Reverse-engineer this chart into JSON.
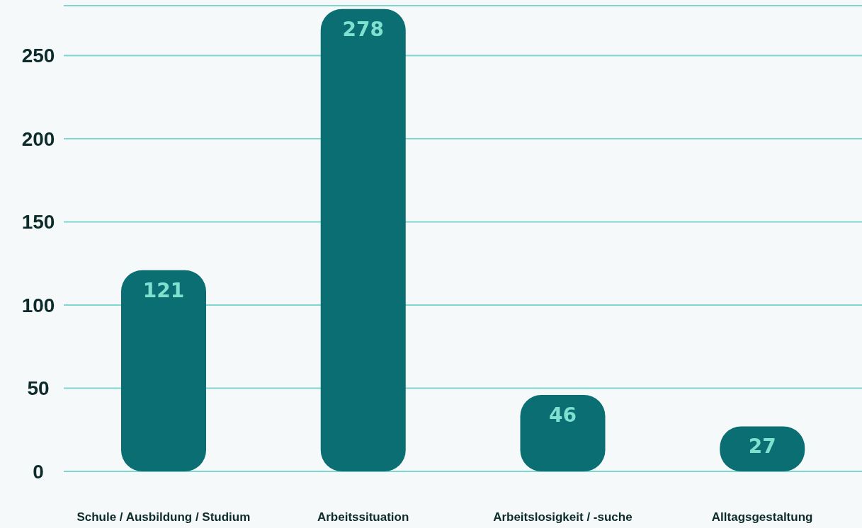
{
  "chart_data": {
    "type": "bar",
    "categories": [
      "Schule / Ausbildung / Studium",
      "Arbeitssituation",
      "Arbeitslosigkeit / -suche",
      "Alltagsgestaltung"
    ],
    "values": [
      121,
      278,
      46,
      27
    ],
    "color": "#0a6e72",
    "ylim": [
      0,
      280
    ],
    "yticks": [
      0,
      50,
      100,
      150,
      200,
      250
    ],
    "grid": "y",
    "data_labels": true
  }
}
